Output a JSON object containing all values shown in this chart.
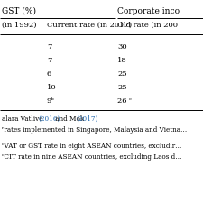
{
  "title_left": "GST (%)",
  "title_right": "Corporate inco",
  "col_headers": [
    "(in 1992)",
    "Current rate (in 2017)",
    "Old rate (in 200"
  ],
  "rows": [
    [
      "7",
      "30"
    ],
    [
      "7",
      "18"
    ],
    [
      "6",
      "25"
    ],
    [
      "10",
      "25"
    ],
    [
      "9ᵇ",
      "26 ᶜ"
    ]
  ],
  "footnote_1a": "alara Vatlive ",
  "footnote_1b": "(2016)",
  "footnote_1c": " and Mok ",
  "footnote_1d": "(2017)",
  "footnote_2": "ʳrates implemented in Singapore, Malaysia and Vietna…",
  "footnote_3": "ᶜVAT or GST rate in eight ASEAN countries, excludir…",
  "footnote_4": "ᶜCIT rate in nine ASEAN countries, excluding Laos d…",
  "bg_color": "#ffffff",
  "text_color": "#000000",
  "link_color": "#2166ac"
}
